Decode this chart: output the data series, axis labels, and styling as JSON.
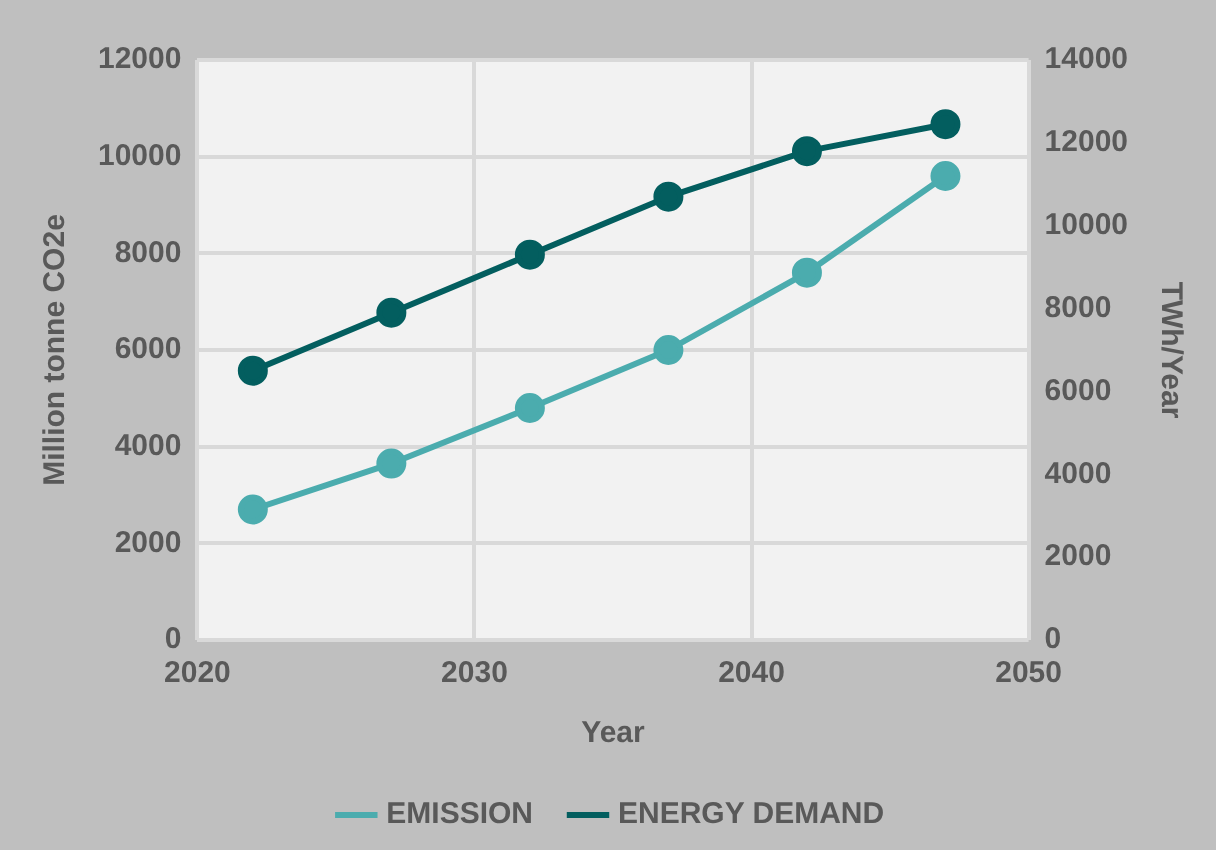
{
  "chart_data": {
    "type": "line",
    "xlabel": "Year",
    "ylabel": "Million tonne CO2e",
    "y2label": "TWh/Year",
    "x": [
      2022,
      2027,
      2032,
      2037,
      2042,
      2047
    ],
    "series": [
      {
        "name": "EMISSION",
        "color": "#4bacae",
        "values": [
          2700,
          3650,
          4800,
          6000,
          7600,
          9600
        ]
      },
      {
        "name": "ENERGY DEMAND",
        "color": "#035e5f",
        "values": [
          6500,
          7900,
          9300,
          10700,
          11800,
          12450
        ],
        "axis": "y2"
      }
    ],
    "xlim": [
      2020,
      2050
    ],
    "xticks": [
      2020,
      2030,
      2040,
      2050
    ],
    "ylim": [
      0,
      12000
    ],
    "yticks": [
      0,
      2000,
      4000,
      6000,
      8000,
      10000,
      12000
    ],
    "y2lim": [
      0,
      14000
    ],
    "y2ticks": [
      0,
      2000,
      4000,
      6000,
      8000,
      10000,
      12000,
      14000
    ],
    "grid": true,
    "legend": "bottom",
    "marker": "circle",
    "line_style": "solid"
  }
}
